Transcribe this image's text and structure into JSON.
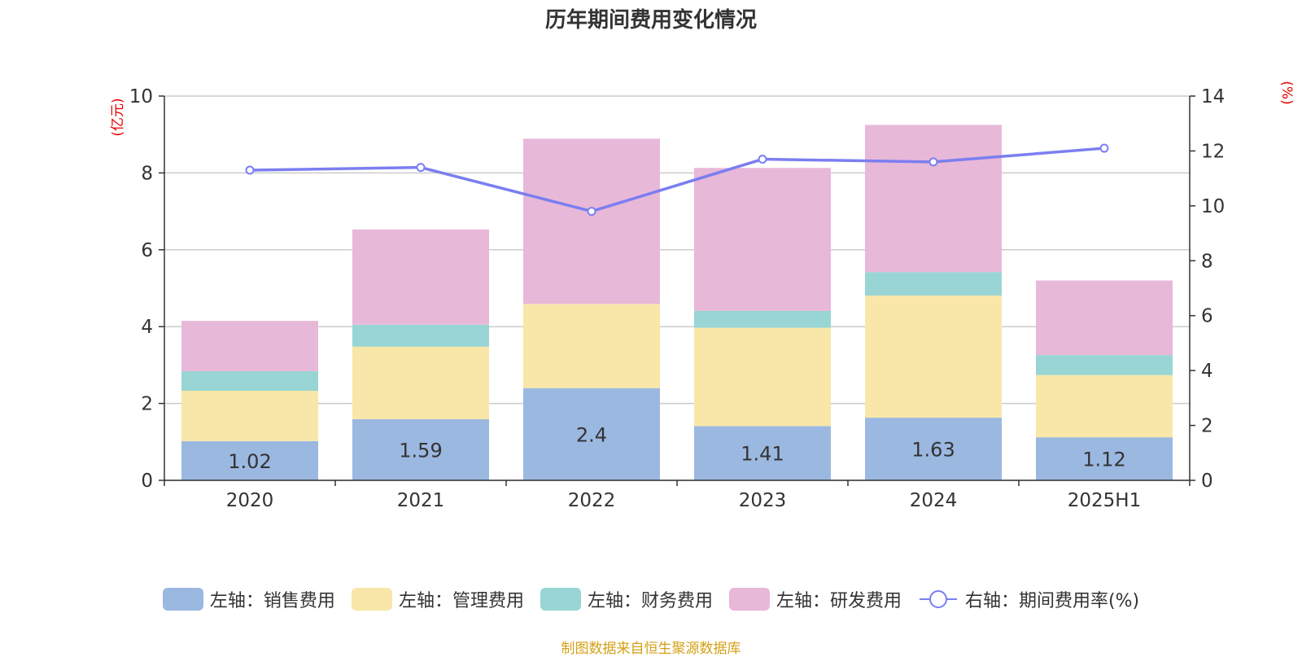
{
  "chart_data": {
    "type": "bar",
    "title": "历年期间费用变化情况",
    "categories": [
      "2020",
      "2021",
      "2022",
      "2023",
      "2024",
      "2025H1"
    ],
    "left_axis": {
      "unit": "(亿元)",
      "ylim": [
        0,
        10
      ],
      "ticks": [
        0,
        2,
        4,
        6,
        8,
        10
      ]
    },
    "right_axis": {
      "unit": "(%)",
      "ylim": [
        0,
        14
      ],
      "ticks": [
        0,
        2,
        4,
        6,
        8,
        10,
        12,
        14
      ]
    },
    "stacked": true,
    "grid": true,
    "legend_position": "bottom",
    "series": [
      {
        "name": "左轴：销售费用",
        "axis": "left",
        "kind": "bar",
        "color": "#9bb8e1",
        "values": [
          1.02,
          1.59,
          2.4,
          1.41,
          1.63,
          1.12
        ],
        "labels": [
          "1.02",
          "1.59",
          "2.4",
          "1.41",
          "1.63",
          "1.12"
        ]
      },
      {
        "name": "左轴：管理费用",
        "axis": "left",
        "kind": "bar",
        "color": "#f8e7a8",
        "values": [
          1.31,
          1.89,
          2.19,
          2.56,
          3.18,
          1.62
        ]
      },
      {
        "name": "左轴：财务费用",
        "axis": "left",
        "kind": "bar",
        "color": "#98d5d4",
        "values": [
          0.51,
          0.57,
          0.0,
          0.44,
          0.61,
          0.52
        ]
      },
      {
        "name": "左轴：研发费用",
        "axis": "left",
        "kind": "bar",
        "color": "#e8b8d9",
        "values": [
          1.31,
          2.48,
          4.3,
          3.72,
          3.83,
          1.94
        ]
      },
      {
        "name": "右轴：期间费用率(%)",
        "axis": "right",
        "kind": "line",
        "color": "#7b7ef0",
        "values": [
          11.3,
          11.4,
          9.8,
          11.7,
          11.6,
          12.1
        ]
      }
    ]
  },
  "source_text": "制图数据来自恒生聚源数据库"
}
